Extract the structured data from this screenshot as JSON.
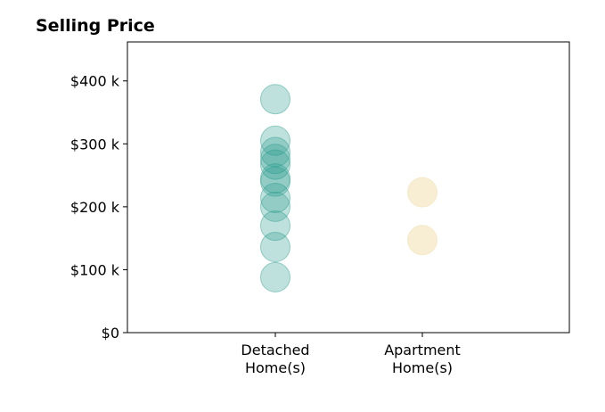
{
  "chart_data": {
    "type": "scatter",
    "title": "Selling Price",
    "xlabel": "",
    "ylabel": "",
    "ylim": [
      0,
      462
    ],
    "y_ticks": [
      {
        "value": 0,
        "label": "$0"
      },
      {
        "value": 100,
        "label": "$100 k"
      },
      {
        "value": 200,
        "label": "$200 k"
      },
      {
        "value": 300,
        "label": "$300 k"
      },
      {
        "value": 400,
        "label": "$400 k"
      }
    ],
    "categories": [
      {
        "lines": [
          "Detached",
          "Home(s)"
        ]
      },
      {
        "lines": [
          "Apartment",
          "Home(s)"
        ]
      }
    ],
    "grid": false,
    "series": [
      {
        "category": 0,
        "color": "#2a9d8f",
        "values": [
          371,
          305,
          287,
          276,
          267,
          245,
          240,
          214,
          200,
          170,
          136,
          88
        ]
      },
      {
        "category": 1,
        "color": "#f0d9a0",
        "values": [
          223,
          147
        ]
      }
    ]
  }
}
